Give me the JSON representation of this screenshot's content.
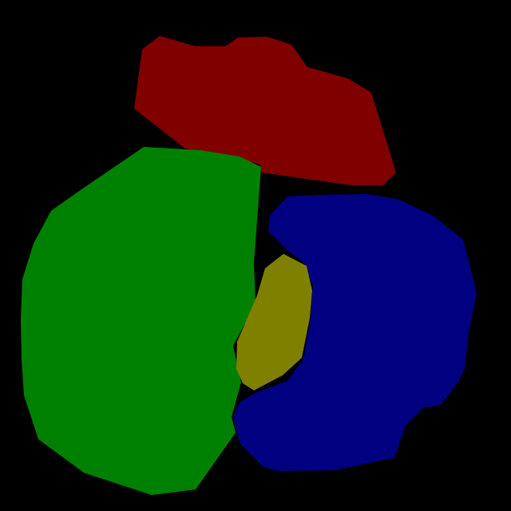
{
  "background_color": "#000000",
  "regions": [
    {
      "name": "red-region",
      "color": "#800000"
    },
    {
      "name": "green-region",
      "color": "#008000"
    },
    {
      "name": "blue-region",
      "color": "#000080"
    },
    {
      "name": "olive-region",
      "color": "#808000"
    }
  ]
}
